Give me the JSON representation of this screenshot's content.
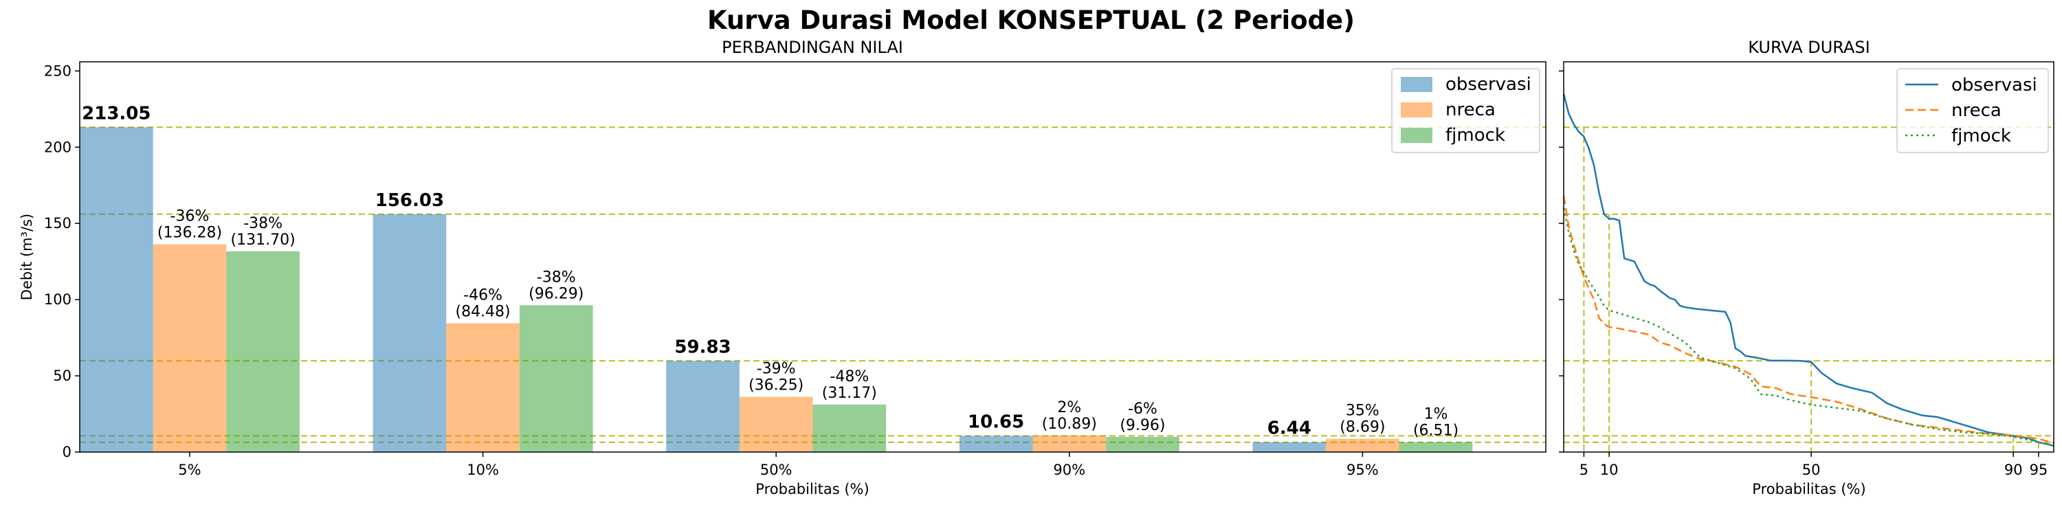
{
  "title": "Kurva Durasi Model KONSEPTUAL (2 Periode)",
  "colors": {
    "observasi": "#1f77b4",
    "nreca": "#ff7f0e",
    "fjmock": "#2ca02c",
    "guide": "#bcbd22"
  },
  "chart_data": [
    {
      "type": "bar",
      "title": "PERBANDINGAN NILAI",
      "xlabel": "Probabilitas (%)",
      "ylabel": "Debit (m³/s)",
      "categories": [
        "5%",
        "10%",
        "50%",
        "90%",
        "95%"
      ],
      "yticks": [
        "0",
        "50",
        "100",
        "150",
        "200",
        "250"
      ],
      "ylim": [
        0,
        256
      ],
      "legend_position": "top-right",
      "series": [
        {
          "name": "observasi",
          "values": [
            213.05,
            156.03,
            59.83,
            10.65,
            6.44
          ]
        },
        {
          "name": "nreca",
          "values": [
            136.28,
            84.48,
            36.25,
            10.89,
            8.69
          ]
        },
        {
          "name": "fjmock",
          "values": [
            131.7,
            96.29,
            31.17,
            9.96,
            6.51
          ]
        }
      ],
      "observasi_labels": [
        "213.05",
        "156.03",
        "59.83",
        "10.65",
        "6.44"
      ],
      "nreca_labels": [
        [
          "-36%",
          "(136.28)"
        ],
        [
          "-46%",
          "(84.48)"
        ],
        [
          "-39%",
          "(36.25)"
        ],
        [
          "2%",
          "(10.89)"
        ],
        [
          "35%",
          "(8.69)"
        ]
      ],
      "fjmock_labels": [
        [
          "-38%",
          "(131.70)"
        ],
        [
          "-38%",
          "(96.29)"
        ],
        [
          "-48%",
          "(31.17)"
        ],
        [
          "-6%",
          "(9.96)"
        ],
        [
          "1%",
          "(6.51)"
        ]
      ],
      "grid": false
    },
    {
      "type": "line",
      "title": "KURVA DURASI",
      "xlabel": "Probabilitas (%)",
      "xticks": [
        "5",
        "10",
        "50",
        "90",
        "95"
      ],
      "xlim": [
        1,
        98
      ],
      "ylim": [
        0,
        256
      ],
      "legend_position": "top-right",
      "guides": {
        "x": [
          5,
          10,
          50,
          90,
          95
        ],
        "y": [
          213.05,
          156.03,
          59.83,
          10.65,
          6.44
        ]
      },
      "series": [
        {
          "name": "observasi",
          "style": "solid",
          "x": [
            1,
            2,
            3,
            4,
            5,
            6,
            7,
            8,
            9,
            10,
            11,
            12,
            13,
            15,
            17,
            18,
            19,
            20,
            22,
            23,
            24,
            25,
            27,
            30,
            33,
            34,
            35,
            36,
            37,
            39,
            42,
            45,
            48,
            50,
            52,
            55,
            58,
            62,
            65,
            68,
            72,
            75,
            80,
            85,
            90,
            93,
            95,
            97,
            98
          ],
          "y": [
            235,
            222,
            215,
            210,
            207,
            199,
            188,
            170,
            156,
            153,
            153,
            152,
            127,
            125,
            112,
            110,
            109,
            106,
            101,
            100,
            96,
            95,
            94,
            93,
            92,
            85,
            68,
            66,
            63,
            62,
            60,
            60,
            59.83,
            59,
            52,
            45,
            42,
            39,
            32,
            28,
            24,
            23,
            18,
            13,
            10.65,
            9,
            6.44,
            5,
            4
          ]
        },
        {
          "name": "nreca",
          "style": "dashed",
          "x": [
            1,
            2,
            3,
            4,
            5,
            6,
            7,
            8,
            9,
            10,
            12,
            15,
            18,
            20,
            22,
            25,
            28,
            30,
            35,
            38,
            40,
            43,
            46,
            50,
            55,
            60,
            65,
            70,
            75,
            80,
            85,
            90,
            93,
            95,
            98
          ],
          "y": [
            168,
            148,
            136,
            125,
            115,
            107,
            100,
            88,
            84,
            82,
            81,
            79,
            77,
            72,
            70,
            65,
            61,
            60,
            56,
            51,
            43,
            42,
            38,
            36,
            33,
            28,
            22,
            18,
            16,
            14,
            12,
            11,
            9.5,
            8.69,
            6
          ]
        },
        {
          "name": "fjmock",
          "style": "dotted",
          "x": [
            1,
            2,
            3,
            4,
            5,
            6,
            7,
            8,
            9,
            10,
            12,
            15,
            18,
            20,
            22,
            25,
            28,
            30,
            35,
            38,
            40,
            43,
            46,
            50,
            55,
            60,
            65,
            70,
            75,
            80,
            85,
            90,
            93,
            95,
            98
          ],
          "y": [
            160,
            144,
            132,
            123,
            118,
            112,
            107,
            102,
            96,
            93,
            91,
            88,
            85,
            82,
            78,
            72,
            62,
            60,
            55,
            48,
            38,
            37,
            34,
            31,
            29,
            27,
            22,
            18,
            15,
            13,
            12,
            10,
            8,
            6.51,
            4
          ]
        }
      ]
    }
  ]
}
